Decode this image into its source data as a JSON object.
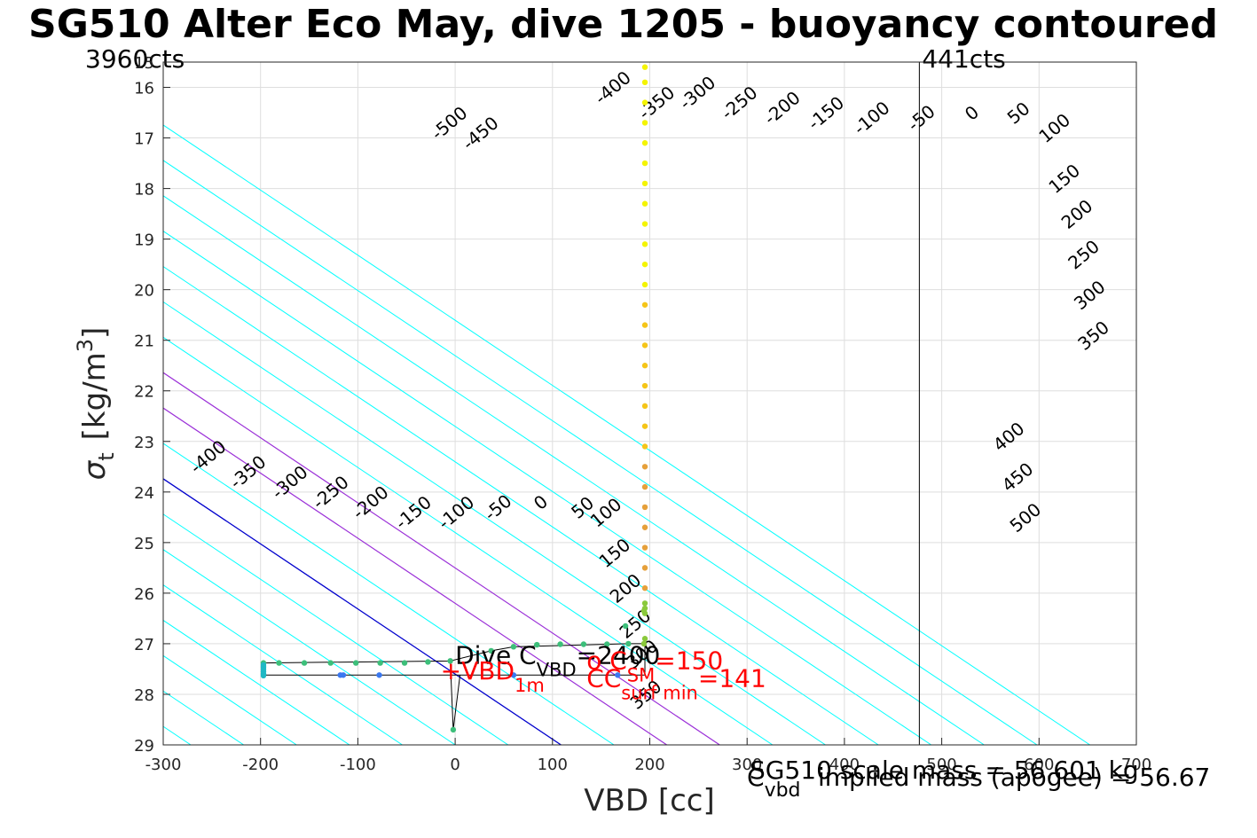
{
  "title": "SG510 Alter Eco May, dive 1205 - buoyancy contoured",
  "chart_data": {
    "type": "scatter",
    "xlabel": "VBD [cc]",
    "ylabel_main": "σ",
    "ylabel_sub": "t",
    "ylabel_unit_pre": "[kg/m",
    "ylabel_unit_sup": "3",
    "ylabel_unit_post": "]",
    "xlim": [
      -300,
      700
    ],
    "ylim": [
      15.5,
      29
    ],
    "y_reversed": true,
    "grid": true,
    "x_ticks": [
      "-300",
      "-200",
      "-100",
      "0",
      "100",
      "200",
      "300",
      "400",
      "500",
      "600",
      "700"
    ],
    "y_ticks": [
      "15",
      "16",
      "17",
      "18",
      "19",
      "20",
      "21",
      "22",
      "23",
      "24",
      "25",
      "26",
      "27",
      "28",
      "29"
    ],
    "contour_levels": [
      -500,
      -450,
      -400,
      -350,
      -300,
      -250,
      -200,
      -150,
      -100,
      -50,
      0,
      50,
      100,
      150,
      200,
      250,
      300,
      350,
      400,
      450,
      500
    ],
    "contour_labels": [
      {
        "t": "-500",
        "x": -2,
        "y": 16.8
      },
      {
        "t": "-450",
        "x": 30,
        "y": 17.0
      },
      {
        "t": "-400",
        "x": 166,
        "y": 16.1
      },
      {
        "t": "-350",
        "x": 211,
        "y": 16.4
      },
      {
        "t": "-300",
        "x": 253,
        "y": 16.2
      },
      {
        "t": "-250",
        "x": 296,
        "y": 16.4
      },
      {
        "t": "-200",
        "x": 340,
        "y": 16.5
      },
      {
        "t": "-150",
        "x": 385,
        "y": 16.6
      },
      {
        "t": "-100",
        "x": 432,
        "y": 16.7
      },
      {
        "t": "-50",
        "x": 483,
        "y": 16.7
      },
      {
        "t": "0",
        "x": 535,
        "y": 16.6
      },
      {
        "t": "50",
        "x": 583,
        "y": 16.6
      },
      {
        "t": "100",
        "x": 620,
        "y": 16.9
      },
      {
        "t": "150",
        "x": 630,
        "y": 17.9
      },
      {
        "t": "200",
        "x": 643,
        "y": 18.6
      },
      {
        "t": "250",
        "x": 650,
        "y": 19.4
      },
      {
        "t": "300",
        "x": 656,
        "y": 20.2
      },
      {
        "t": "350",
        "x": 660,
        "y": 21.0
      },
      {
        "t": "-400",
        "x": -250,
        "y": 23.4
      },
      {
        "t": "-350",
        "x": -209,
        "y": 23.7
      },
      {
        "t": "-300",
        "x": -166,
        "y": 23.9
      },
      {
        "t": "-250",
        "x": -124,
        "y": 24.1
      },
      {
        "t": "-200",
        "x": -83,
        "y": 24.3
      },
      {
        "t": "-150",
        "x": -39,
        "y": 24.5
      },
      {
        "t": "-100",
        "x": 5,
        "y": 24.5
      },
      {
        "t": "-50",
        "x": 48,
        "y": 24.4
      },
      {
        "t": "0",
        "x": 92,
        "y": 24.3
      },
      {
        "t": "50",
        "x": 135,
        "y": 24.4
      },
      {
        "t": "100",
        "x": 159,
        "y": 24.5
      },
      {
        "t": "150",
        "x": 168,
        "y": 25.3
      },
      {
        "t": "200",
        "x": 179,
        "y": 26.0
      },
      {
        "t": "250",
        "x": 189,
        "y": 26.7
      },
      {
        "t": "300",
        "x": 196,
        "y": 27.3
      },
      {
        "t": "350",
        "x": 200,
        "y": 28.1
      },
      {
        "t": "400",
        "x": 573,
        "y": 23.0
      },
      {
        "t": "450",
        "x": 582,
        "y": 23.8
      },
      {
        "t": "500",
        "x": 590,
        "y": 24.6
      }
    ],
    "vlines": [
      {
        "label": "3960cts",
        "x": -300
      },
      {
        "label": "441cts",
        "x": 477
      }
    ],
    "series": [
      {
        "points": [
          [
            195,
            15.6
          ],
          [
            195,
            15.9
          ],
          [
            195,
            16.3
          ],
          [
            195,
            16.7
          ],
          [
            195,
            17.1
          ],
          [
            195,
            17.5
          ],
          [
            195,
            17.9
          ],
          [
            195,
            18.3
          ],
          [
            195,
            18.7
          ],
          [
            195,
            19.1
          ],
          [
            195,
            19.5
          ],
          [
            195,
            19.9
          ]
        ],
        "color": "#f4f400"
      },
      {
        "points": [
          [
            195,
            20.3
          ],
          [
            195,
            20.7
          ],
          [
            195,
            21.1
          ],
          [
            195,
            21.5
          ],
          [
            195,
            21.9
          ],
          [
            195,
            22.3
          ],
          [
            195,
            22.7
          ],
          [
            195,
            23.1
          ]
        ],
        "color": "#f5c518"
      },
      {
        "points": [
          [
            195,
            23.5
          ],
          [
            195,
            23.9
          ],
          [
            195,
            24.3
          ],
          [
            195,
            24.7
          ],
          [
            195,
            25.1
          ],
          [
            195,
            25.5
          ],
          [
            195,
            25.9
          ]
        ],
        "color": "#e6a03a"
      },
      {
        "points": [
          [
            195,
            26.2
          ],
          [
            195,
            26.3
          ],
          [
            195,
            26.4
          ],
          [
            194,
            26.35
          ],
          [
            195,
            26.9
          ],
          [
            194,
            27.0
          ]
        ],
        "color": "#8ac93b"
      },
      {
        "points": [
          [
            -197,
            27.38
          ],
          [
            -181,
            27.38
          ],
          [
            -155,
            27.38
          ],
          [
            -128,
            27.38
          ],
          [
            -102,
            27.38
          ],
          [
            -77,
            27.38
          ],
          [
            -52,
            27.38
          ],
          [
            -28,
            27.36
          ],
          [
            -5,
            27.34
          ],
          [
            37,
            27.14
          ],
          [
            60,
            27.06
          ],
          [
            84,
            27.02
          ],
          [
            108,
            27.01
          ],
          [
            132,
            27.01
          ],
          [
            156,
            27.01
          ],
          [
            178,
            27.0
          ],
          [
            -2,
            28.7
          ],
          [
            175,
            26.65
          ]
        ],
        "color": "#3dbf7a"
      },
      {
        "points": [
          [
            -197,
            27.42
          ],
          [
            -197,
            27.46
          ],
          [
            -197,
            27.5
          ],
          [
            -197,
            27.55
          ],
          [
            -197,
            27.6
          ],
          [
            -197,
            27.63
          ]
        ],
        "color": "#1fb8c4"
      },
      {
        "points": [
          [
            -118,
            27.62
          ],
          [
            -115,
            27.62
          ],
          [
            -78,
            27.62
          ],
          [
            60,
            27.62
          ],
          [
            167,
            27.62
          ]
        ],
        "color": "#3a78f0"
      }
    ],
    "path": [
      [
        -197,
        27.38
      ],
      [
        -5,
        27.34
      ],
      [
        37,
        27.14
      ],
      [
        60,
        27.06
      ],
      [
        178,
        27.0
      ],
      [
        195,
        27.0
      ],
      [
        195,
        27.62
      ],
      [
        -197,
        27.62
      ]
    ],
    "annotations": [
      {
        "text": "Dive C",
        "sub": "VBD",
        "rest": "=2400",
        "color": "#000000",
        "x": 0,
        "y": 27.4
      },
      {
        "text": "+VBD",
        "sub": "1m",
        "rest": "",
        "color": "#ff0000",
        "x": -15,
        "y": 27.7
      },
      {
        "text": "o C",
        "sub": "SM",
        "rest": "=150",
        "color": "#ff0000",
        "x": 135,
        "y": 27.5
      },
      {
        "text": "CC",
        "sub": "surf min",
        "rest": "=141",
        "color": "#ff0000",
        "x": 135,
        "y": 27.85
      }
    ],
    "footer_left": {
      "text": "C",
      "sub": "vbd"
    },
    "footer_overlap_1": "SG510 scale mass = 56.601 kg",
    "footer_overlap_2": "implied mass (apogee) = 56.67"
  },
  "colors": {
    "contour_normal": "#00ffff",
    "contour_zero": "#0000cd",
    "contour_special": "#9b30d8",
    "grid": "#dedede",
    "path": "#000000",
    "vline": "#000000"
  }
}
